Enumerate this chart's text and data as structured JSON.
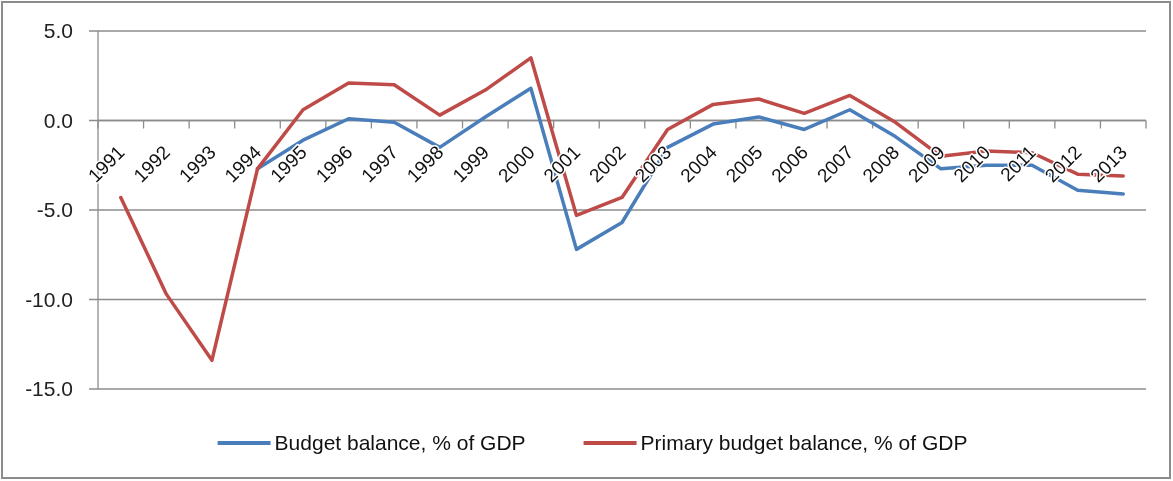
{
  "chart_data": {
    "type": "line",
    "categories": [
      "1991",
      "1992",
      "1993",
      "1994",
      "1995",
      "1996",
      "1997",
      "1998",
      "1999",
      "2000",
      "2001",
      "2002",
      "2003",
      "2004",
      "2005",
      "2006",
      "2007",
      "2008",
      "2009",
      "2010",
      "2011",
      "2012",
      "2013"
    ],
    "series": [
      {
        "name": "Budget balance, % of GDP",
        "color": "#4a7ebb",
        "values": [
          null,
          null,
          null,
          -2.7,
          -1.1,
          0.1,
          -0.1,
          -1.5,
          0.2,
          1.8,
          -7.2,
          -5.7,
          -1.5,
          -0.2,
          0.2,
          -0.5,
          0.6,
          -0.9,
          -2.7,
          -2.5,
          -2.5,
          -3.9,
          -4.1
        ]
      },
      {
        "name": "Primary budget balance, % of GDP",
        "color": "#be4b48",
        "values": [
          -4.3,
          -9.7,
          -13.4,
          -2.7,
          0.6,
          2.1,
          2.0,
          0.3,
          1.7,
          3.5,
          -5.3,
          -4.3,
          -0.5,
          0.9,
          1.2,
          0.4,
          1.4,
          -0.1,
          -2.0,
          -1.7,
          -1.8,
          -3.0,
          -3.1
        ]
      }
    ],
    "ylim": [
      -15,
      5
    ],
    "yticks": [
      {
        "value": 5,
        "label": "5.0"
      },
      {
        "value": 0,
        "label": "0.0"
      },
      {
        "value": -5,
        "label": "-5.0"
      },
      {
        "value": -10,
        "label": "-10.0"
      },
      {
        "value": -15,
        "label": "-15.0"
      }
    ],
    "grid": "y",
    "legend": "bottom",
    "line_style": "solid"
  }
}
